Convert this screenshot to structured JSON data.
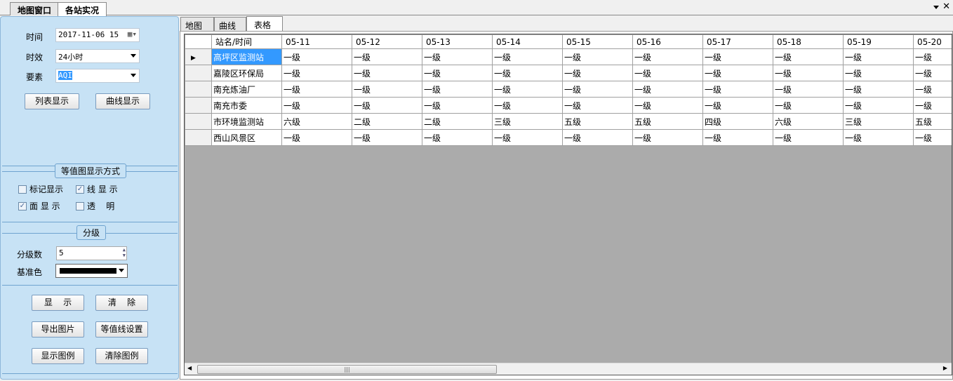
{
  "window_tabs": [
    "地图窗口",
    "各站实况"
  ],
  "left": {
    "time_label": "时间",
    "time_value": "2017-11-06 15",
    "validity_label": "时效",
    "validity_value": "24小时",
    "element_label": "要素",
    "element_value": "AQI",
    "list_btn": "列表显示",
    "curve_btn": "曲线显示",
    "contour_group": "等值图显示方式",
    "checkboxes": [
      {
        "label": "标记显示",
        "checked": false
      },
      {
        "label": "线 显 示",
        "checked": true
      },
      {
        "label": "面 显 示",
        "checked": true
      },
      {
        "label": "透    明",
        "checked": false
      }
    ],
    "grade_group": "分级",
    "grade_count_label": "分级数",
    "grade_count_value": "5",
    "base_color_label": "基准色",
    "base_color": "#000000",
    "show_btn": "显    示",
    "clear_btn": "清    除",
    "export_btn": "导出图片",
    "contour_btn": "等值线设置",
    "legend_show_btn": "显示图例",
    "legend_clear_btn": "清除图例"
  },
  "sub_tabs": [
    "地图",
    "曲线",
    "表格"
  ],
  "table": {
    "header": "站名/时间",
    "dates": [
      "05-11",
      "05-12",
      "05-13",
      "05-14",
      "05-15",
      "05-16",
      "05-17",
      "05-18",
      "05-19",
      "05-20"
    ],
    "rows": [
      {
        "name": "高坪区监测站",
        "values": [
          "一级",
          "一级",
          "一级",
          "一级",
          "一级",
          "一级",
          "一级",
          "一级",
          "一级",
          "一级"
        ]
      },
      {
        "name": "嘉陵区环保局",
        "values": [
          "一级",
          "一级",
          "一级",
          "一级",
          "一级",
          "一级",
          "一级",
          "一级",
          "一级",
          "一级"
        ]
      },
      {
        "name": "南充炼油厂",
        "values": [
          "一级",
          "一级",
          "一级",
          "一级",
          "一级",
          "一级",
          "一级",
          "一级",
          "一级",
          "一级"
        ]
      },
      {
        "name": "南充市委",
        "values": [
          "一级",
          "一级",
          "一级",
          "一级",
          "一级",
          "一级",
          "一级",
          "一级",
          "一级",
          "一级"
        ]
      },
      {
        "name": "市环境监测站",
        "values": [
          "六级",
          "二级",
          "二级",
          "三级",
          "五级",
          "五级",
          "四级",
          "六级",
          "三级",
          "五级"
        ]
      },
      {
        "name": "西山风景区",
        "values": [
          "一级",
          "一级",
          "一级",
          "一级",
          "一级",
          "一级",
          "一级",
          "一级",
          "一级",
          "一级"
        ]
      }
    ]
  },
  "scroll_fraction": 0.4
}
